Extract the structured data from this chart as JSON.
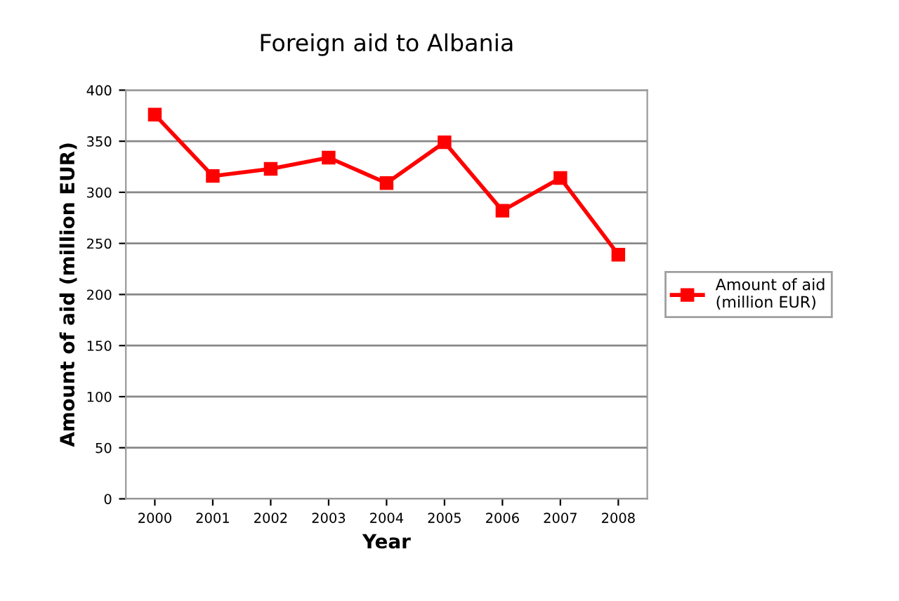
{
  "chart_data": {
    "type": "line",
    "title": "Foreign aid to Albania",
    "xlabel": "Year",
    "ylabel": "Amount of aid (million EUR)",
    "categories": [
      "2000",
      "2001",
      "2002",
      "2003",
      "2004",
      "2005",
      "2006",
      "2007",
      "2008"
    ],
    "series": [
      {
        "name": "Amount of aid\n(million EUR)",
        "color": "#ff0000",
        "values": [
          376,
          316,
          323,
          334,
          309,
          349,
          282,
          314,
          239
        ]
      }
    ],
    "ylim": [
      0,
      400
    ],
    "yticks": [
      0,
      50,
      100,
      150,
      200,
      250,
      300,
      350,
      400
    ],
    "grid": "y",
    "legend": "right",
    "marker": "square",
    "line_style": "solid"
  }
}
